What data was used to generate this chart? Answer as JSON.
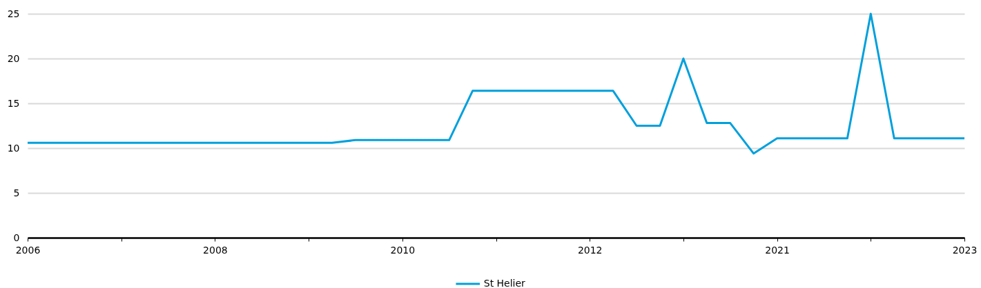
{
  "chart_data": {
    "type": "line",
    "categories": [
      "2006",
      null,
      null,
      null,
      null,
      null,
      null,
      null,
      "2008",
      null,
      null,
      null,
      null,
      null,
      null,
      null,
      "2010",
      null,
      null,
      null,
      null,
      null,
      null,
      null,
      "2012",
      null,
      null,
      null,
      null,
      null,
      null,
      null,
      "2021",
      null,
      null,
      null,
      null,
      null,
      null,
      null,
      "2023"
    ],
    "series": [
      {
        "name": "St Helier",
        "color": "#00a0dc",
        "values": [
          10.6,
          10.6,
          10.6,
          10.6,
          10.6,
          10.6,
          10.6,
          10.6,
          10.6,
          10.6,
          10.6,
          10.6,
          10.6,
          10.6,
          10.9,
          10.9,
          10.9,
          10.9,
          10.9,
          16.4,
          16.4,
          16.4,
          16.4,
          16.4,
          16.4,
          16.4,
          12.5,
          12.5,
          20,
          12.8,
          12.8,
          9.4,
          11.1,
          11.1,
          11.1,
          11.1,
          25,
          11.1,
          11.1,
          11.1,
          11.1
        ]
      }
    ],
    "ylim": [
      0,
      25
    ],
    "yticks": [
      0,
      5,
      10,
      15,
      20,
      25
    ],
    "grid": "y",
    "legend": "bottom"
  }
}
